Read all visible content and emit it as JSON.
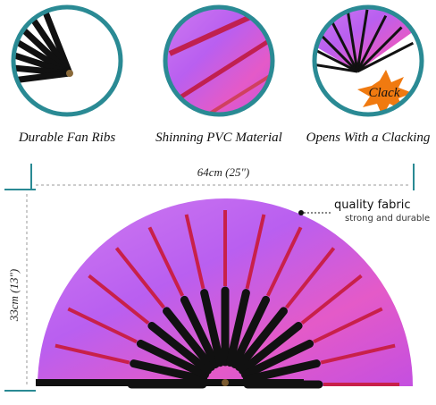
{
  "circles": [
    {
      "caption": "Durable Fan Ribs"
    },
    {
      "caption": "Shinning PVC Material"
    },
    {
      "caption": "Opens With a Clacking",
      "badge": "Clack"
    }
  ],
  "dimensions": {
    "width": "64cm (25\")",
    "height": "33cm (13\")"
  },
  "callout": {
    "title": "quality fabric",
    "subtitle": "strong and durable"
  }
}
